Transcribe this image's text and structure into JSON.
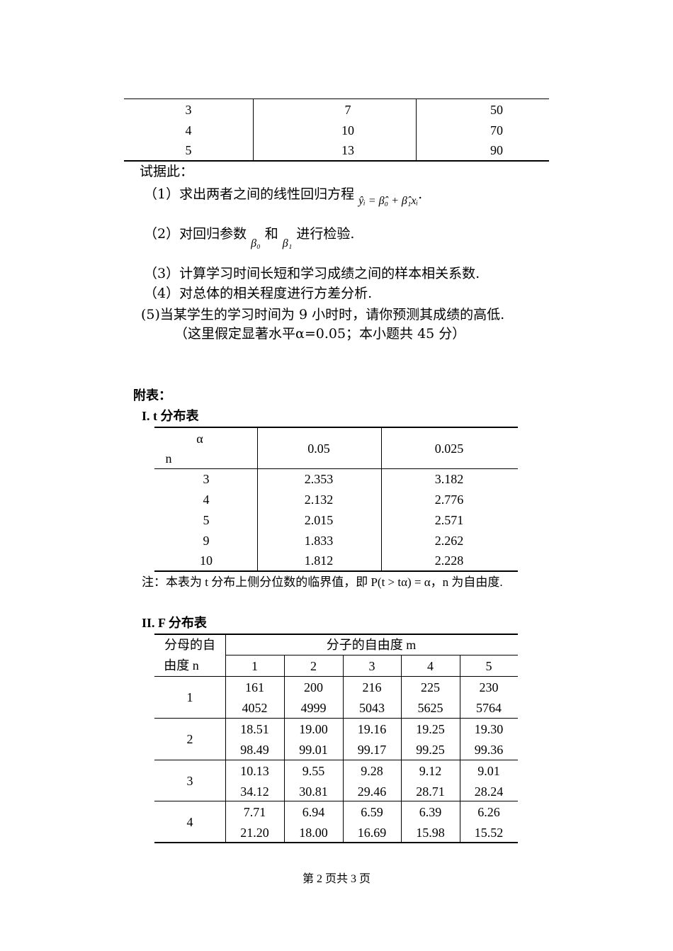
{
  "top_table": {
    "rows": [
      [
        "3",
        "7",
        "50"
      ],
      [
        "4",
        "10",
        "70"
      ],
      [
        "5",
        "13",
        "90"
      ]
    ]
  },
  "questions": {
    "intro": "试据此：",
    "q1": "（1）求出两者之间的线性回归方程",
    "q1_formula": "ŷᵢ = β̂₀ + β̂₁xᵢ",
    "q1_end": ".",
    "q2_a": "（2）对回归参数",
    "q2_b0": "β₀",
    "q2_and": "和",
    "q2_b1": "β₁",
    "q2_end": "进行检验.",
    "q3": "（3）计算学习时间长短和学习成绩之间的样本相关系数.",
    "q4": "（4）对总体的相关程度进行方差分析.",
    "q5": "(5)当某学生的学习时间为 9 小时时，请你预测其成绩的高低.",
    "note": "（这里假定显著水平α=0.05；本小题共 45 分）"
  },
  "appendix": {
    "title": "附表："
  },
  "t_table": {
    "title": "I.  t 分布表",
    "header_alpha": "α",
    "header_n": "n",
    "columns": [
      "0.05",
      "0.025"
    ],
    "rows": [
      [
        "3",
        "2.353",
        "3.182"
      ],
      [
        "4",
        "2.132",
        "2.776"
      ],
      [
        "5",
        "2.015",
        "2.571"
      ],
      [
        "9",
        "1.833",
        "2.262"
      ],
      [
        "10",
        "1.812",
        "2.228"
      ]
    ],
    "note": "注：本表为 t 分布上侧分位数的临界值，即 P(t > tα) = α，n 为自由度."
  },
  "f_table": {
    "title": "II.  F 分布表",
    "row_header_1": "分母的自",
    "row_header_2": "由度 n",
    "col_group": "分子的自由度 m",
    "columns": [
      "1",
      "2",
      "3",
      "4",
      "5"
    ],
    "rows": [
      {
        "n": "1",
        "a": [
          "161",
          "200",
          "216",
          "225",
          "230"
        ],
        "b": [
          "4052",
          "4999",
          "5043",
          "5625",
          "5764"
        ]
      },
      {
        "n": "2",
        "a": [
          "18.51",
          "19.00",
          "19.16",
          "19.25",
          "19.30"
        ],
        "b": [
          "98.49",
          "99.01",
          "99.17",
          "99.25",
          "99.36"
        ]
      },
      {
        "n": "3",
        "a": [
          "10.13",
          "9.55",
          "9.28",
          "9.12",
          "9.01"
        ],
        "b": [
          "34.12",
          "30.81",
          "29.46",
          "28.71",
          "28.24"
        ]
      },
      {
        "n": "4",
        "a": [
          "7.71",
          "6.94",
          "6.59",
          "6.39",
          "6.26"
        ],
        "b": [
          "21.20",
          "18.00",
          "16.69",
          "15.98",
          "15.52"
        ]
      }
    ]
  },
  "footer": {
    "page": "第 2 页共 3 页"
  }
}
